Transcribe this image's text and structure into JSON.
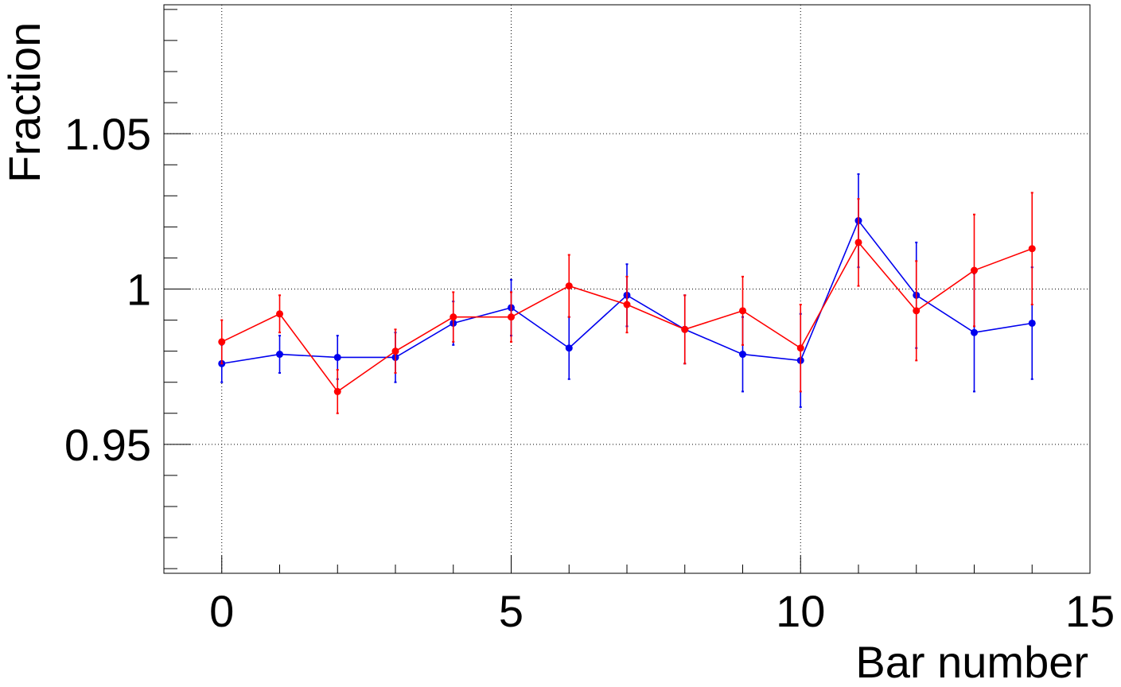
{
  "chart_data": {
    "type": "line",
    "title": "",
    "xlabel": "Bar number",
    "ylabel": "Fraction",
    "xlim": [
      -1,
      15
    ],
    "ylim": [
      0.9085,
      1.0915
    ],
    "x_ticks": [
      0,
      5,
      10,
      15
    ],
    "x_tick_labels": [
      "0",
      "5",
      "10",
      "15"
    ],
    "y_ticks": [
      0.95,
      1.0,
      1.05
    ],
    "y_tick_labels": [
      "0.95",
      "1",
      "1.05"
    ],
    "grid": true,
    "legend": "none",
    "colors": {
      "blue": "#0000ee",
      "red": "#ff0000",
      "axis": "#000000",
      "grid": "#000000"
    },
    "series": [
      {
        "color": "#0000ee",
        "x": [
          0,
          1,
          2,
          3,
          4,
          5,
          6,
          7,
          8,
          9,
          10,
          11,
          12,
          13,
          14
        ],
        "y": [
          0.976,
          0.979,
          0.978,
          0.978,
          0.989,
          0.994,
          0.981,
          0.998,
          0.987,
          0.979,
          0.977,
          1.022,
          0.998,
          0.986,
          0.989
        ],
        "yerr": [
          0.006,
          0.006,
          0.007,
          0.008,
          0.007,
          0.009,
          0.01,
          0.01,
          0.011,
          0.012,
          0.015,
          0.015,
          0.017,
          0.019,
          0.018
        ]
      },
      {
        "color": "#ff0000",
        "x": [
          0,
          1,
          2,
          3,
          4,
          5,
          6,
          7,
          8,
          9,
          10,
          11,
          12,
          13,
          14
        ],
        "y": [
          0.983,
          0.992,
          0.967,
          0.98,
          0.991,
          0.991,
          1.001,
          0.995,
          0.987,
          0.993,
          0.981,
          1.015,
          0.993,
          1.006,
          1.013
        ],
        "yerr": [
          0.007,
          0.006,
          0.007,
          0.007,
          0.008,
          0.008,
          0.01,
          0.009,
          0.011,
          0.011,
          0.014,
          0.014,
          0.016,
          0.018,
          0.018
        ]
      }
    ]
  }
}
